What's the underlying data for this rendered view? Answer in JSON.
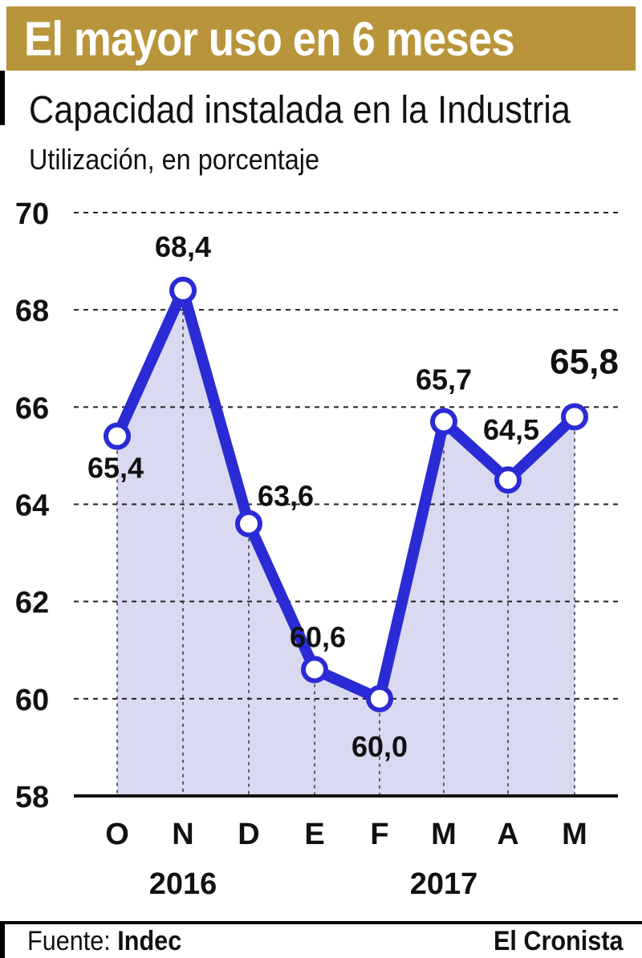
{
  "header": {
    "banner_title": "El mayor uso en 6 meses",
    "banner_color": "#b8953a"
  },
  "chart_data": {
    "type": "area",
    "title": "Capacidad instalada en la Industria",
    "subtitle": "Utilización, en porcentaje",
    "categories": [
      "O",
      "N",
      "D",
      "E",
      "F",
      "M",
      "A",
      "M"
    ],
    "year_labels": [
      {
        "label": "2016",
        "under_category_index": 1
      },
      {
        "label": "2017",
        "under_category_index": 5
      }
    ],
    "series": [
      {
        "values": [
          65.4,
          68.4,
          63.6,
          60.6,
          60.0,
          65.7,
          64.5,
          65.8
        ]
      }
    ],
    "value_labels": [
      "65,4",
      "68,4",
      "63,6",
      "60,6",
      "60,0",
      "65,7",
      "64,5",
      "65,8"
    ],
    "highlight_last_label": true,
    "ylim": [
      58,
      70
    ],
    "y_ticks": [
      "58",
      "60",
      "62",
      "64",
      "66",
      "68",
      "70"
    ],
    "grid": true,
    "line_color": "#2b2bd6",
    "fill_color": "#d9d9f2"
  },
  "footer": {
    "source_label": "Fuente:",
    "source_value": "Indec",
    "brand": "El Cronista"
  }
}
